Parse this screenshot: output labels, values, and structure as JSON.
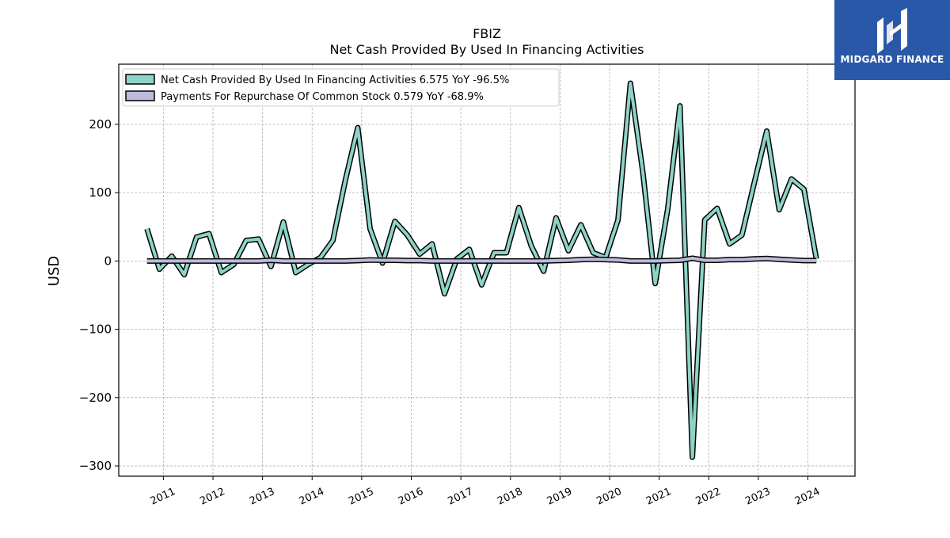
{
  "chart_data": {
    "type": "line",
    "title": "FBIZ",
    "subtitle": "Net Cash Provided By Used In Financing Activities",
    "ylabel": "USD",
    "xlabel": "",
    "ylim": [
      -315,
      288
    ],
    "xlim": [
      2010.1,
      2024.95
    ],
    "yticks": [
      -300,
      -200,
      -100,
      0,
      100,
      200
    ],
    "ytick_labels": [
      "−300",
      "−200",
      "−100",
      "0",
      "100",
      "200"
    ],
    "xticks": [
      2011,
      2012,
      2013,
      2014,
      2015,
      2016,
      2017,
      2018,
      2019,
      2020,
      2021,
      2022,
      2023,
      2024
    ],
    "xtick_labels": [
      "2011",
      "2012",
      "2013",
      "2014",
      "2015",
      "2016",
      "2017",
      "2018",
      "2019",
      "2020",
      "2021",
      "2022",
      "2023",
      "2024"
    ],
    "grid": true,
    "legend_position": "top-left",
    "series": [
      {
        "name": "Net Cash Provided By Used In Financing Activities",
        "legend_label": "Net Cash Provided By Used In Financing Activities  6.575 YoY -96.5%",
        "color": "#8dd3c7",
        "x": [
          2010.67,
          2010.92,
          2011.17,
          2011.42,
          2011.67,
          2011.92,
          2012.17,
          2012.42,
          2012.67,
          2012.92,
          2013.17,
          2013.42,
          2013.67,
          2013.92,
          2014.17,
          2014.42,
          2014.67,
          2014.92,
          2015.17,
          2015.42,
          2015.67,
          2015.92,
          2016.17,
          2016.42,
          2016.67,
          2016.92,
          2017.17,
          2017.42,
          2017.67,
          2017.92,
          2018.17,
          2018.42,
          2018.67,
          2018.92,
          2019.17,
          2019.42,
          2019.67,
          2019.92,
          2020.17,
          2020.42,
          2020.67,
          2020.92,
          2021.17,
          2021.42,
          2021.67,
          2021.92,
          2022.17,
          2022.42,
          2022.67,
          2022.92,
          2023.17,
          2023.42,
          2023.67,
          2023.92,
          2024.17
        ],
        "values": [
          47,
          -12,
          7,
          -20,
          35,
          40,
          -17,
          -5,
          30,
          32,
          -8,
          57,
          -17,
          -5,
          5,
          30,
          118,
          195,
          47,
          -3,
          58,
          38,
          10,
          25,
          -48,
          3,
          17,
          -35,
          12,
          12,
          78,
          22,
          -15,
          63,
          15,
          53,
          12,
          5,
          60,
          260,
          130,
          -33,
          75,
          227,
          -287,
          60,
          77,
          25,
          38,
          115,
          190,
          75,
          120,
          105,
          3
        ]
      },
      {
        "name": "Payments For Repurchase Of Common Stock",
        "legend_label": "Payments For Repurchase Of Common Stock  0.579 YoY -68.9%",
        "color": "#bebada",
        "x": [
          2010.67,
          2010.92,
          2011.17,
          2011.42,
          2011.67,
          2011.92,
          2012.17,
          2012.42,
          2012.67,
          2012.92,
          2013.17,
          2013.42,
          2013.67,
          2013.92,
          2014.17,
          2014.42,
          2014.67,
          2014.92,
          2015.17,
          2015.42,
          2015.67,
          2015.92,
          2016.17,
          2016.42,
          2016.67,
          2016.92,
          2017.17,
          2017.42,
          2017.67,
          2017.92,
          2018.17,
          2018.42,
          2018.67,
          2018.92,
          2019.17,
          2019.42,
          2019.67,
          2019.92,
          2020.17,
          2020.42,
          2020.67,
          2020.92,
          2021.17,
          2021.42,
          2021.67,
          2021.92,
          2022.17,
          2022.42,
          2022.67,
          2022.92,
          2023.17,
          2023.42,
          2023.67,
          2023.92,
          2024.17
        ],
        "values": [
          0,
          0,
          0,
          0,
          0,
          0,
          0,
          0,
          0,
          0,
          1,
          0,
          0,
          0,
          0,
          0,
          0,
          0.5,
          1.5,
          1,
          1,
          0.5,
          0.5,
          0,
          0,
          0,
          0,
          0,
          0,
          0,
          0,
          0,
          0,
          0.5,
          1,
          2,
          2.5,
          2,
          1.5,
          0,
          0,
          0,
          0.5,
          1,
          4,
          1,
          1,
          2,
          2,
          3,
          3.5,
          2.5,
          1.5,
          0.5,
          0.5
        ]
      }
    ]
  },
  "logo": {
    "text": "MIDGARD FINANCE",
    "bg_color": "#2a58a8",
    "icon": "midgard-logo-icon"
  }
}
